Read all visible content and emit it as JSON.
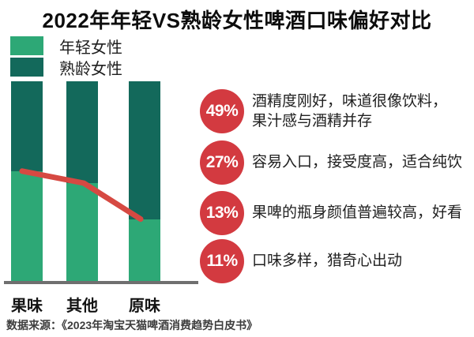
{
  "title": "2022年年轻VS熟龄女性啤酒口味偏好对比",
  "legend": {
    "items": [
      {
        "label": "年轻女性",
        "color": "#2da876"
      },
      {
        "label": "熟龄女性",
        "color": "#13695b"
      }
    ]
  },
  "colors": {
    "young": "#2da876",
    "mature": "#13695b",
    "trend_line": "#d64942",
    "callout_circle": "#d33a40",
    "axis": "#6f6f6f",
    "title_text": "#0d0d0d",
    "body_text": "#1f1f1f"
  },
  "chart_data": {
    "type": "bar",
    "subtype": "stacked-100-percent-with-trend-line",
    "title": "2022年年轻VS熟龄女性啤酒口味偏好对比",
    "categories": [
      "果味",
      "其他",
      "原味"
    ],
    "series": [
      {
        "name": "年轻女性",
        "color": "#2da876",
        "values": [
          55,
          49,
          31
        ]
      },
      {
        "name": "熟龄女性",
        "color": "#13695b",
        "values": [
          45,
          51,
          69
        ]
      }
    ],
    "trend_line": {
      "follows_series": "年轻女性",
      "values": [
        55,
        49,
        31
      ],
      "color": "#d64942"
    },
    "xlabel": "",
    "ylabel": "",
    "ylim": [
      0,
      100
    ],
    "grid": false,
    "legend_position": "top-left"
  },
  "callouts": [
    {
      "percent": "49%",
      "text": "酒精度刚好，味道很像饮料，\n果汁感与酒精并存"
    },
    {
      "percent": "27%",
      "text": "容易入口，接受度高，适合纯饮"
    },
    {
      "percent": "13%",
      "text": "果啤的瓶身颜值普遍较高，好看"
    },
    {
      "percent": "11%",
      "text": "口味多样，猎奇心出动"
    }
  ],
  "source": "数据来源：《2023年淘宝天猫啤酒消费趋势白皮书》"
}
